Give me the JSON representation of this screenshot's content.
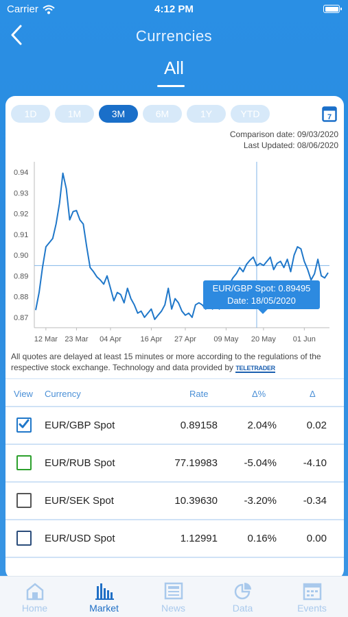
{
  "status_bar": {
    "carrier": "Carrier",
    "time": "4:12 PM"
  },
  "nav": {
    "title": "Currencies",
    "back_icon": "chevron-left-icon"
  },
  "section": {
    "title": "All"
  },
  "periods": [
    {
      "label": "1D",
      "active": false
    },
    {
      "label": "1M",
      "active": false
    },
    {
      "label": "3M",
      "active": true
    },
    {
      "label": "6M",
      "active": false
    },
    {
      "label": "1Y",
      "active": false
    },
    {
      "label": "YTD",
      "active": false
    }
  ],
  "calendar": {
    "icon": "calendar-icon",
    "day": "7"
  },
  "meta": {
    "comparison": "Comparison date: 09/03/2020",
    "last_updated": "Last Updated: 08/06/2020"
  },
  "chart_data": {
    "type": "line",
    "series": [
      {
        "name": "EUR/GBP Spot",
        "color": "#1f77c9"
      }
    ],
    "x_ticks": [
      "12 Mar",
      "23 Mar",
      "04 Apr",
      "16 Apr",
      "27 Apr",
      "09 May",
      "20 May",
      "01 Jun"
    ],
    "y_ticks": [
      "0.87",
      "0.88",
      "0.89",
      "0.90",
      "0.91",
      "0.92",
      "0.93",
      "0.94"
    ],
    "ylim": [
      0.865,
      0.945
    ],
    "points": [
      [
        "09 Mar",
        0.8735
      ],
      [
        "10 Mar",
        0.882
      ],
      [
        "11 Mar",
        0.894
      ],
      [
        "12 Mar",
        0.904
      ],
      [
        "13 Mar",
        0.906
      ],
      [
        "14 Mar",
        0.908
      ],
      [
        "16 Mar",
        0.915
      ],
      [
        "17 Mar",
        0.925
      ],
      [
        "18 Mar",
        0.9395
      ],
      [
        "19 Mar",
        0.932
      ],
      [
        "20 Mar",
        0.917
      ],
      [
        "21 Mar",
        0.921
      ],
      [
        "23 Mar",
        0.9215
      ],
      [
        "24 Mar",
        0.917
      ],
      [
        "25 Mar",
        0.915
      ],
      [
        "26 Mar",
        0.904
      ],
      [
        "27 Mar",
        0.894
      ],
      [
        "30 Mar",
        0.892
      ],
      [
        "31 Mar",
        0.8895
      ],
      [
        "01 Apr",
        0.888
      ],
      [
        "02 Apr",
        0.886
      ],
      [
        "03 Apr",
        0.89
      ],
      [
        "04 Apr",
        0.884
      ],
      [
        "05 Apr",
        0.878
      ],
      [
        "06 Apr",
        0.882
      ],
      [
        "07 Apr",
        0.881
      ],
      [
        "08 Apr",
        0.877
      ],
      [
        "09 Apr",
        0.884
      ],
      [
        "10 Apr",
        0.879
      ],
      [
        "11 Apr",
        0.876
      ],
      [
        "12 Apr",
        0.872
      ],
      [
        "13 Apr",
        0.873
      ],
      [
        "14 Apr",
        0.87
      ],
      [
        "15 Apr",
        0.872
      ],
      [
        "16 Apr",
        0.874
      ],
      [
        "17 Apr",
        0.869
      ],
      [
        "18 Apr",
        0.871
      ],
      [
        "19 Apr",
        0.873
      ],
      [
        "20 Apr",
        0.876
      ],
      [
        "21 Apr",
        0.884
      ],
      [
        "22 Apr",
        0.874
      ],
      [
        "23 Apr",
        0.879
      ],
      [
        "24 Apr",
        0.877
      ],
      [
        "25 Apr",
        0.873
      ],
      [
        "27 Apr",
        0.871
      ],
      [
        "28 Apr",
        0.872
      ],
      [
        "29 Apr",
        0.87
      ],
      [
        "30 Apr",
        0.876
      ],
      [
        "01 May",
        0.877
      ],
      [
        "02 May",
        0.876
      ],
      [
        "03 May",
        0.874
      ],
      [
        "04 May",
        0.878
      ],
      [
        "05 May",
        0.874
      ],
      [
        "06 May",
        0.876
      ],
      [
        "07 May",
        0.874
      ],
      [
        "08 May",
        0.88
      ],
      [
        "09 May",
        0.882
      ],
      [
        "10 May",
        0.886
      ],
      [
        "11 May",
        0.889
      ],
      [
        "12 May",
        0.891
      ],
      [
        "13 May",
        0.894
      ],
      [
        "14 May",
        0.892
      ],
      [
        "15 May",
        0.8955
      ],
      [
        "16 May",
        0.8975
      ],
      [
        "17 May",
        0.899
      ],
      [
        "18 May",
        0.8949
      ],
      [
        "19 May",
        0.896
      ],
      [
        "20 May",
        0.895
      ],
      [
        "21 May",
        0.897
      ],
      [
        "22 May",
        0.899
      ],
      [
        "23 May",
        0.893
      ],
      [
        "24 May",
        0.896
      ],
      [
        "25 May",
        0.897
      ],
      [
        "26 May",
        0.894
      ],
      [
        "27 May",
        0.898
      ],
      [
        "28 May",
        0.892
      ],
      [
        "29 May",
        0.9
      ],
      [
        "30 May",
        0.904
      ],
      [
        "31 May",
        0.903
      ],
      [
        "01 Jun",
        0.897
      ],
      [
        "02 Jun",
        0.893
      ],
      [
        "03 Jun",
        0.888
      ],
      [
        "04 Jun",
        0.891
      ],
      [
        "05 Jun",
        0.898
      ],
      [
        "06 Jun",
        0.89
      ],
      [
        "07 Jun",
        0.889
      ],
      [
        "08 Jun",
        0.8915
      ]
    ],
    "crosshair": {
      "x": "18 May",
      "y": 0.89495
    },
    "grid": false
  },
  "tooltip": {
    "line1": "EUR/GBP Spot: 0.89495",
    "line2": "Date: 18/05/2020"
  },
  "disclaimer": {
    "text": "All quotes are delayed at least 15 minutes or more according to the regulations of the respective stock exchange. Technology and data provided by",
    "logo": "TELETRADER"
  },
  "table": {
    "headers": {
      "view": "View",
      "currency": "Currency",
      "rate": "Rate",
      "pct": "Δ%",
      "delta": "Δ"
    },
    "rows": [
      {
        "name": "EUR/GBP Spot",
        "rate": "0.89158",
        "pct": "2.04%",
        "delta": "0.02",
        "checked": true,
        "color": "#1f77c9"
      },
      {
        "name": "EUR/RUB Spot",
        "rate": "77.19983",
        "pct": "-5.04%",
        "delta": "-4.10",
        "checked": false,
        "color": "#2ca02c"
      },
      {
        "name": "EUR/SEK Spot",
        "rate": "10.39630",
        "pct": "-3.20%",
        "delta": "-0.34",
        "checked": false,
        "color": "#555555"
      },
      {
        "name": "EUR/USD Spot",
        "rate": "1.12991",
        "pct": "0.16%",
        "delta": "0.00",
        "checked": false,
        "color": "#2a4c7a"
      }
    ]
  },
  "tabbar": [
    {
      "label": "Home",
      "icon": "home-icon",
      "active": false
    },
    {
      "label": "Market",
      "icon": "bar-chart-icon",
      "active": true
    },
    {
      "label": "News",
      "icon": "newspaper-icon",
      "active": false
    },
    {
      "label": "Data",
      "icon": "pie-chart-icon",
      "active": false
    },
    {
      "label": "Events",
      "icon": "calendar-grid-icon",
      "active": false
    }
  ]
}
